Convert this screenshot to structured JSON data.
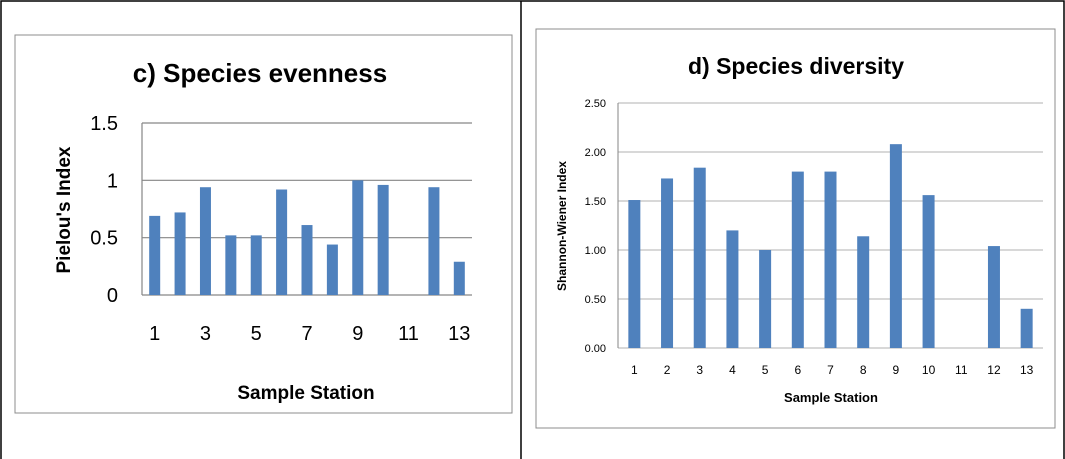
{
  "chart_data": [
    {
      "type": "bar",
      "title": "c) Species evenness",
      "xlabel": "Sample Station",
      "ylabel": "Pielou's Index",
      "categories": [
        "1",
        "2",
        "3",
        "4",
        "5",
        "6",
        "7",
        "8",
        "9",
        "10",
        "11",
        "12",
        "13"
      ],
      "x_tick_labels": [
        "1",
        "3",
        "5",
        "7",
        "9",
        "11",
        "13"
      ],
      "y_tick_labels": [
        "0",
        "0.5",
        "1",
        "1.5"
      ],
      "values": [
        0.69,
        0.72,
        0.94,
        0.52,
        0.52,
        0.92,
        0.61,
        0.44,
        1.0,
        0.96,
        0,
        0.94,
        0.29
      ],
      "ylim": [
        0,
        1.5
      ],
      "grid": true,
      "bar_color": "#4F81BD",
      "legend": "none"
    },
    {
      "type": "bar",
      "title": "d) Species diversity",
      "xlabel": "Sample Station",
      "ylabel": "Shannon-Wiener Index",
      "categories": [
        "1",
        "2",
        "3",
        "4",
        "5",
        "6",
        "7",
        "8",
        "9",
        "10",
        "11",
        "12",
        "13"
      ],
      "x_tick_labels": [
        "1",
        "2",
        "3",
        "4",
        "5",
        "6",
        "7",
        "8",
        "9",
        "10",
        "11",
        "12",
        "13"
      ],
      "y_tick_labels": [
        "0.00",
        "0.50",
        "1.00",
        "1.50",
        "2.00",
        "2.50"
      ],
      "values": [
        1.51,
        1.73,
        1.84,
        1.2,
        1.0,
        1.8,
        1.8,
        1.14,
        2.08,
        1.56,
        0,
        1.04,
        0.4
      ],
      "ylim": [
        0,
        2.5
      ],
      "grid": true,
      "bar_color": "#4F81BD",
      "legend": "none"
    }
  ]
}
